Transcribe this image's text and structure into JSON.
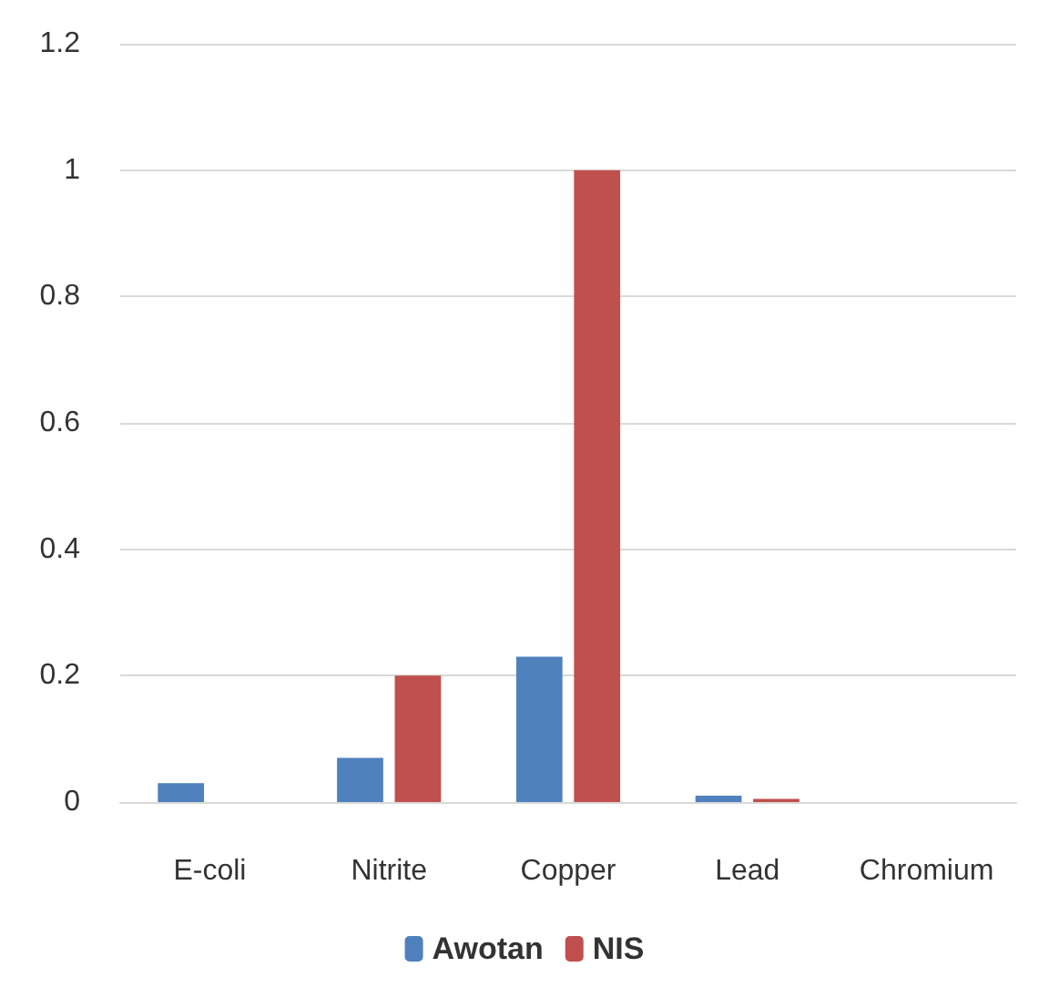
{
  "chart_data": {
    "type": "bar",
    "categories": [
      "E-coli",
      "Nitrite",
      "Copper",
      "Lead",
      "Chromium"
    ],
    "series": [
      {
        "name": "Awotan",
        "color": "#4f81bd",
        "values": [
          0.03,
          0.07,
          0.23,
          0.01,
          0
        ]
      },
      {
        "name": "NIS",
        "color": "#c0504d",
        "values": [
          0,
          0.2,
          1,
          0.005,
          0
        ]
      }
    ],
    "ylim": [
      0,
      1.2
    ],
    "yticks": [
      0,
      0.2,
      0.4,
      0.6,
      0.8,
      1,
      1.2
    ],
    "grid": "y",
    "legend": "bottom"
  }
}
